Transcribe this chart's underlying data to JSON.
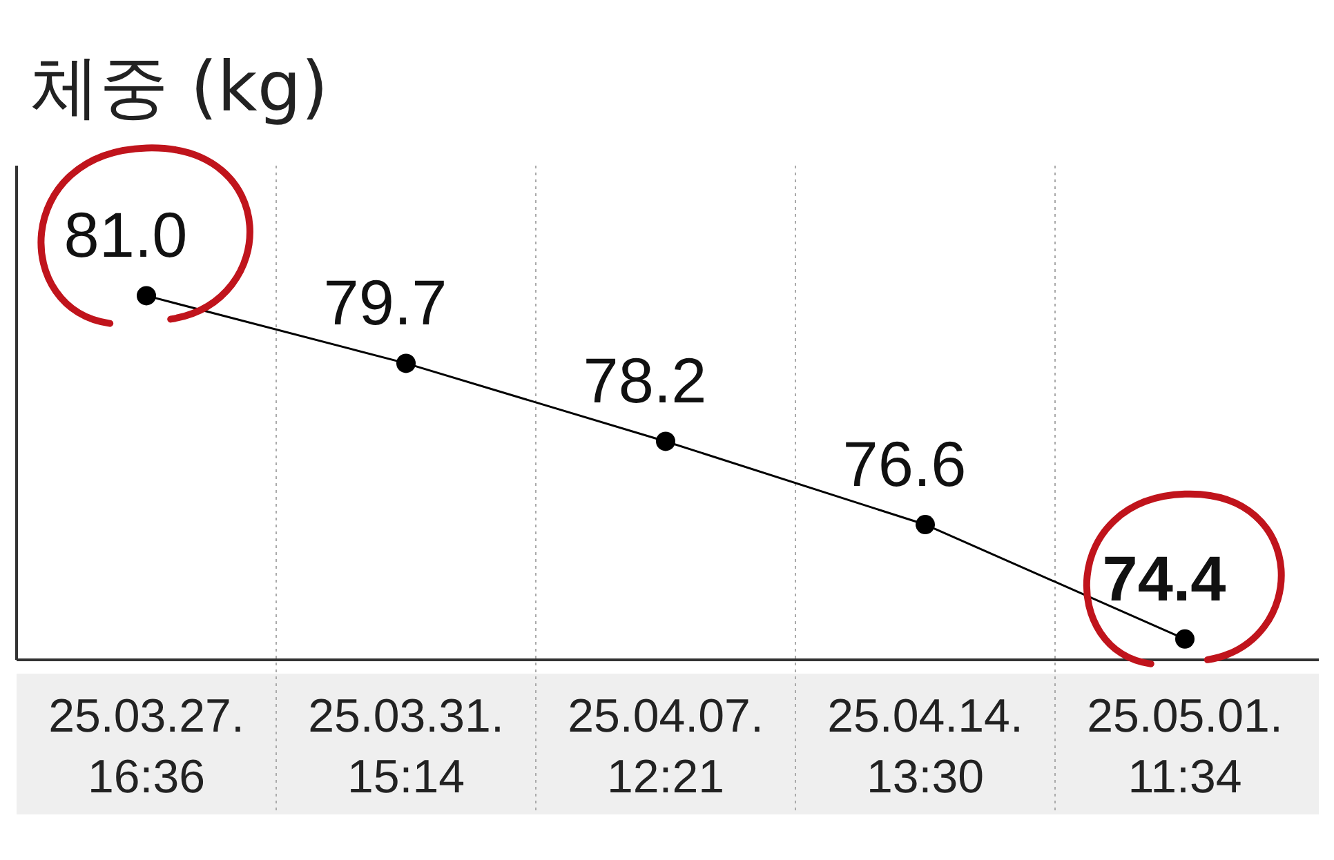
{
  "chart_data": {
    "type": "line",
    "title": "체중 (kg)",
    "categories": [
      "25.03.27. 16:36",
      "25.03.31. 15:14",
      "25.04.07. 12:21",
      "25.04.14. 13:30",
      "25.05.01. 11:34"
    ],
    "values": [
      81.0,
      79.7,
      78.2,
      76.6,
      74.4
    ],
    "value_labels": [
      "81.0",
      "79.7",
      "78.2",
      "76.6",
      "74.4"
    ],
    "color": "#000000",
    "marker": "circle",
    "grid": "x",
    "ylim": [
      74,
      83.5
    ],
    "tick_labels": "x"
  }
}
